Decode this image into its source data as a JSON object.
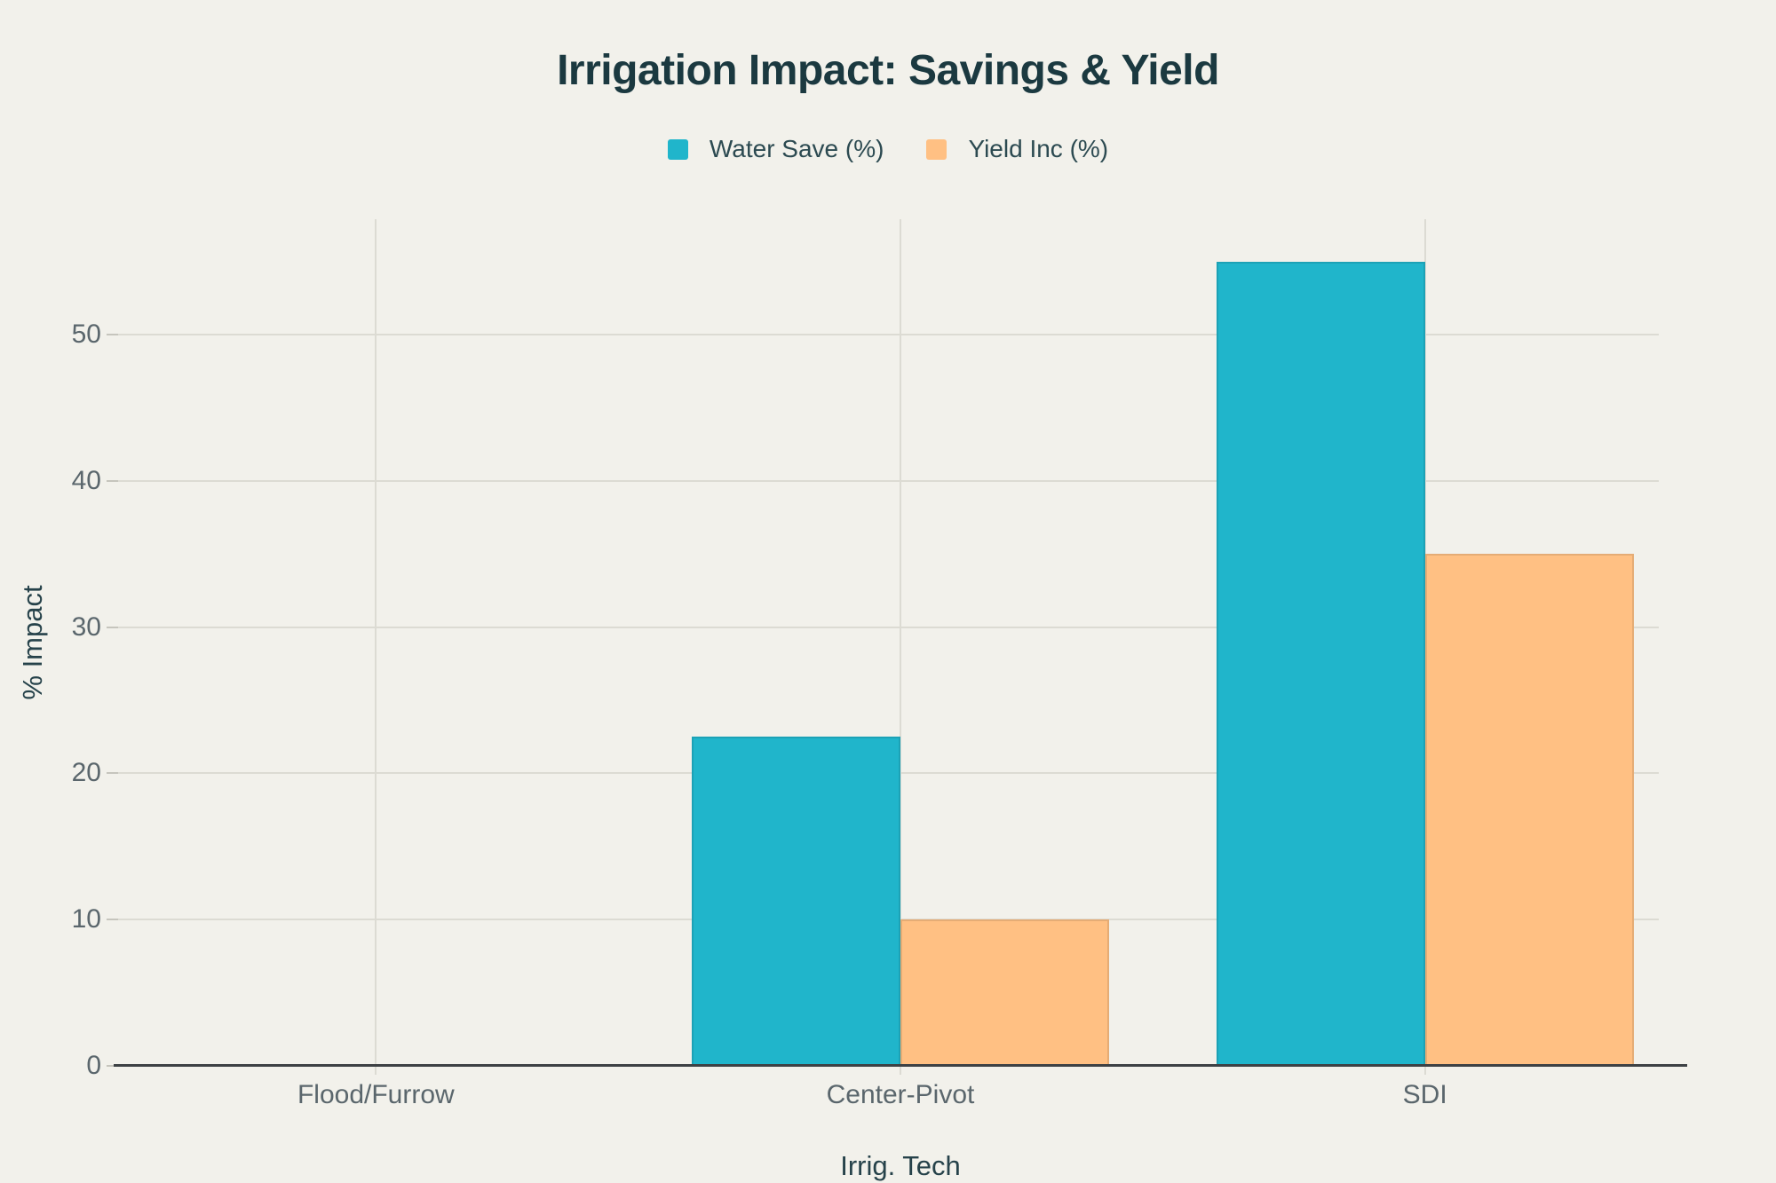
{
  "title": "Irrigation Impact: Savings & Yield",
  "chart_data": {
    "type": "bar",
    "title": "Irrigation Impact: Savings & Yield",
    "categories": [
      "Flood/Furrow",
      "Center-Pivot",
      "SDI"
    ],
    "series": [
      {
        "name": "Water Save (%)",
        "color": "#20b5cb",
        "values": [
          0,
          22.5,
          55
        ]
      },
      {
        "name": "Yield Inc (%)",
        "color": "#ffc083",
        "values": [
          0,
          10,
          35
        ]
      }
    ],
    "xlabel": "Irrig. Tech",
    "ylabel": "% Impact",
    "ylim": [
      0,
      57.9
    ],
    "yticks": [
      0,
      10,
      20,
      30,
      40,
      50
    ],
    "grid": true,
    "legend_position": "top",
    "colors": {
      "background": "#f2f1eb",
      "gridline": "#dcdbd3",
      "axis_line": "#3d4144",
      "tick_text": "#5a666c",
      "axis_title_text": "#26424a",
      "title_text": "#1b3940",
      "legend_text": "#2c4a51"
    }
  }
}
